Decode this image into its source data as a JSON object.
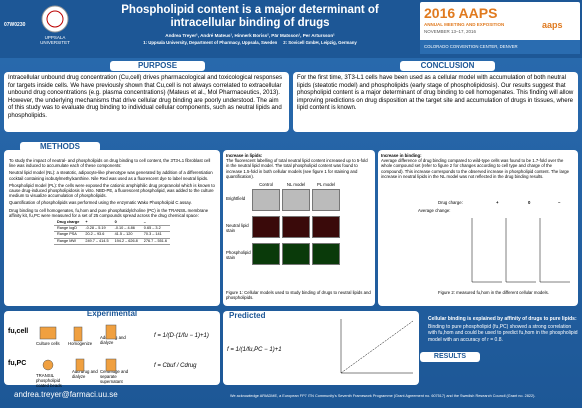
{
  "header": {
    "poster_id": "07W0230",
    "university": "UPPSALA UNIVERSITET",
    "title": "Phospholipid content is a major determinant of intracellular binding of drugs",
    "authors": "Andrea Treyer¹, André Mateus¹, Hinnerk Boriss², Pär Matsson¹, Per Artursson¹",
    "affiliations": "1: Uppsala University, Department of Pharmacy, Uppsala, Sweden     2: Sovicell GmbH, Leipzig, Germany",
    "meeting": {
      "name": "2016 AAPS",
      "subtitle": "ANNUAL MEETING AND EXPOSITION",
      "dates": "NOVEMBER 13–17, 2016",
      "venue": "COLORADO CONVENTION CENTER, DENVER",
      "brand": "aaps"
    }
  },
  "purpose": {
    "heading": "PURPOSE",
    "text": "Intracellular unbound drug concentration (Cu,cell) drives pharmacological and toxicological responses for targets inside cells. We have previously shown that Cu,cell is not always correlated to extracellular unbound drug concentrations (e.g. plasma concentrations) (Mateus et al., Mol Pharmaceutics, 2013). However, the underlying mechanisms that drive cellular drug binding are poorly understood. The aim of this study was to evaluate drug binding to individual cellular components, such as neutral lipids and phospholipids."
  },
  "conclusion": {
    "heading": "CONCLUSION",
    "text": "For the first time, 3T3-L1 cells have been used as a cellular model with accumulation of both neutral lipids (steatotic model) and phospholipids (early stage of phospholipidosis). Our results suggest that phospholipid content is a major determinant of drug binding to cell homogenates. This finding will allow improving predictions on drug disposition at the target site and accumulation of drugs in tissues, where lipid content is known."
  },
  "methods": {
    "heading": "METHODS",
    "paragraphs": [
      "To study the impact of neutral- and phospholipids on drug binding to cell content, the 3T3-L1 fibroblast cell line was induced to accumulate each of these components:",
      "Neutral lipid model (NL): a steatotic, adipocyte-like phenotype was generated by addition of a differentiation cocktail containing isobutylmethylxanthine. Nile Red was used as a fluorescent dye to label neutral lipids.",
      "Phospholipid model (PL): the cells were exposed the cationic amphiphilic drug propranolol which is known to cause drug-induced phospholipidosis in vitro. NBD-PE, a fluorescent phospholipid, was added to the culture medium to visualize accumulation of phospholipids.",
      "Quantification of phospholipids was performed using the enzymatic Wako Phospholipid C assay.",
      "Drug binding to cell homogenates, fu,hom and pure phosphatidylcholine (PC) in the TRANSIL membrane affinity kit, fu,PC were measured for a set of 25 compounds spread across the drug chemical space:"
    ],
    "table": {
      "header": [
        "Drug charge",
        "+",
        "0",
        "–"
      ],
      "rows": [
        [
          "Range logD",
          "-0.28 – 5.19",
          "-0.10 – 4.86",
          "0.65 – 3.2"
        ],
        [
          "Range PSA",
          "20.2 – 93.6",
          "41.5 – 120",
          "70.3 – 141"
        ],
        [
          "Range MW",
          "249.7 – 414.5",
          "194.2 – 626.8",
          "276.7 – 551.6"
        ]
      ]
    }
  },
  "lipids": {
    "heading": "Increase in lipids:",
    "text": "The fluorescent labelling of total neutral lipid content increased up to 5-fold in the neutral lipid model. The total phospholipid content was found to increase 1.5-fold in both cellular models (see figure 1 for staining and quantification).",
    "columns": [
      "Control",
      "NL model",
      "PL model"
    ],
    "rows": [
      "Brightfield",
      "Neutral lipid stain",
      "Phospholipid stain"
    ],
    "caption": "Figure 1: Cellular models used to study binding of drugs to neutral lipids and phospholipids."
  },
  "binding": {
    "heading": "Increase in binding:",
    "text": "Average difference of drug binding compared to wild-type cells was found to be 1.7-fold over the whole compound set (refer to figure 2 for changes according to cell type and charge of the compound). This increase corresponds to the observed increase in phospholipid content. The large increase in neutral lipids in the NL model was not reflected in the drug binding results.",
    "charge_label": "Drug charge:",
    "change_label": "Average change:",
    "charges": [
      "+",
      "0",
      "–"
    ],
    "caption": "Figure 2: measured fu,hom in the different cellular models."
  },
  "experimental": {
    "heading": "Experimental",
    "labels": [
      "fu,cell",
      "fu,PC"
    ],
    "steps": [
      "Culture cells",
      "Homogenize",
      "Add drug and dialyze",
      "TRANSIL phospholipid coated beads",
      "Add drug and dialyze",
      "Centrifuge and separate supernatant"
    ]
  },
  "predicted": {
    "heading": "Predicted",
    "statement": "Cellular binding is explained by affinity of drugs to pure lipids:",
    "text": "Binding to pure phospholipid (fu,PC) showed a strong correlation with fu,hom and could be used to predict fu,hom in the phospholipid model with an accuracy of r = 0.8."
  },
  "results": {
    "heading": "RESULTS"
  },
  "footer": {
    "email": "andrea.treyer@farmaci.uu.se",
    "acknowledgement": "We acknowledge ARIADME, a European FP7 ITN Community's Seventh Framework Programme (Grant Agreement no. 607517) and the Swedish Research Council (Grant no. 2822)."
  }
}
